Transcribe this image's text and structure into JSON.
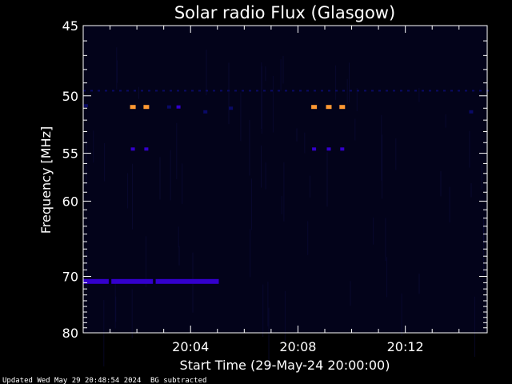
{
  "chart_data": {
    "type": "heatmap",
    "title": "Solar radio Flux (Glasgow)",
    "xlabel": "Start Time (29-May-24 20:00:00)",
    "ylabel": "Frequency [MHz]",
    "xlim": [
      0,
      15.05
    ],
    "x_unit": "minutes after 20:00:00",
    "ylim": [
      45,
      80
    ],
    "y_scale": "reciprocal (frequency axis increasing downward)",
    "x_ticks": [
      {
        "value": 4,
        "label": "20:04"
      },
      {
        "value": 8,
        "label": "20:08"
      },
      {
        "value": 12,
        "label": "20:12"
      }
    ],
    "y_ticks": [
      {
        "value": 45,
        "label": "45"
      },
      {
        "value": 50,
        "label": "50"
      },
      {
        "value": 55,
        "label": "55"
      },
      {
        "value": 60,
        "label": "60"
      },
      {
        "value": 70,
        "label": "70"
      },
      {
        "value": 80,
        "label": "80"
      }
    ],
    "colors": {
      "background": "#000000",
      "plot_bg": "#03031a",
      "low": "#0a0a66",
      "mid": "#3300cc",
      "high": "#ff9933"
    },
    "bands": [
      {
        "freq": 70.8,
        "x_start": 0.0,
        "x_end": 0.95,
        "level": "mid"
      },
      {
        "freq": 70.8,
        "x_start": 1.05,
        "x_end": 2.6,
        "level": "mid"
      },
      {
        "freq": 70.8,
        "x_start": 2.7,
        "x_end": 5.05,
        "level": "mid"
      }
    ],
    "spots": [
      {
        "x": 1.85,
        "freq": 50.9,
        "level": "high"
      },
      {
        "x": 2.35,
        "freq": 50.9,
        "level": "high"
      },
      {
        "x": 8.6,
        "freq": 50.9,
        "level": "high"
      },
      {
        "x": 9.15,
        "freq": 50.9,
        "level": "high"
      },
      {
        "x": 9.65,
        "freq": 50.9,
        "level": "high"
      },
      {
        "x": 1.85,
        "freq": 54.6,
        "level": "mid"
      },
      {
        "x": 2.35,
        "freq": 54.6,
        "level": "mid"
      },
      {
        "x": 8.6,
        "freq": 54.6,
        "level": "mid"
      },
      {
        "x": 9.15,
        "freq": 54.6,
        "level": "mid"
      },
      {
        "x": 9.65,
        "freq": 54.6,
        "level": "mid"
      },
      {
        "x": 3.55,
        "freq": 50.9,
        "level": "mid"
      },
      {
        "x": 3.2,
        "freq": 50.9,
        "level": "low"
      },
      {
        "x": 4.55,
        "freq": 51.3,
        "level": "low"
      },
      {
        "x": 5.5,
        "freq": 51.0,
        "level": "low"
      },
      {
        "x": 0.1,
        "freq": 50.8,
        "level": "low"
      },
      {
        "x": 14.45,
        "freq": 51.3,
        "level": "low"
      }
    ],
    "lines": [
      {
        "freq": 49.6,
        "x_start": 0.0,
        "x_end": 15.05,
        "level": "low"
      }
    ]
  },
  "footer": {
    "updated": "Updated Wed May 29 20:48:54 2024",
    "note": "BG subtracted"
  }
}
